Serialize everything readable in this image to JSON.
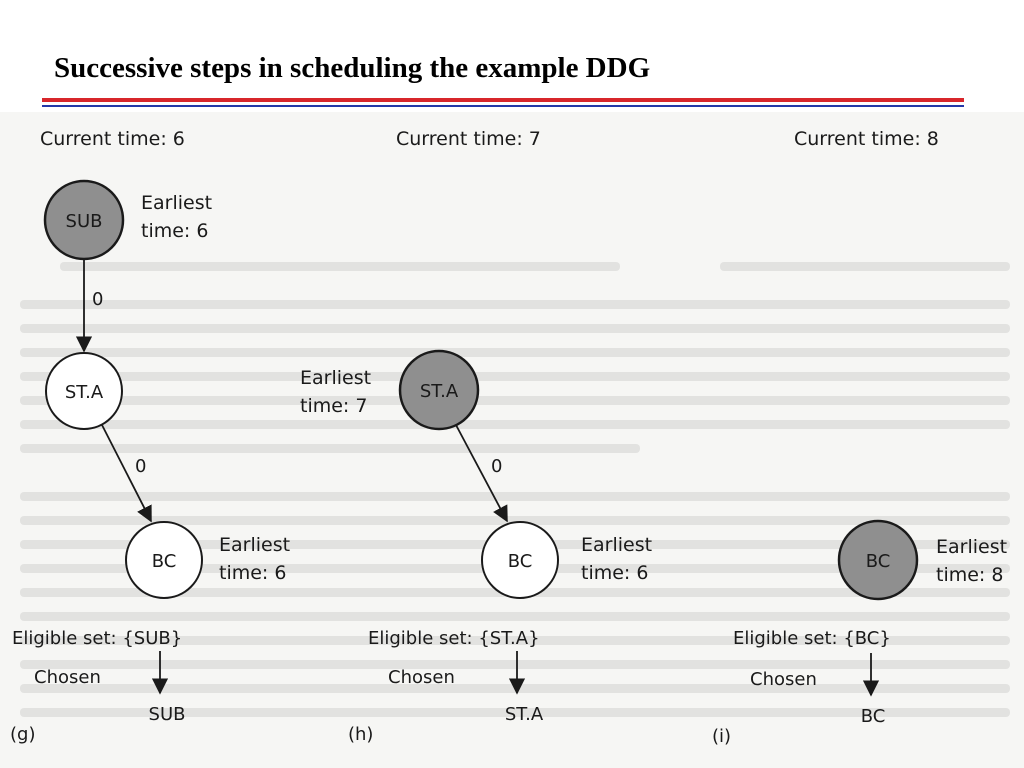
{
  "slide": {
    "title": "Successive steps in scheduling the example DDG"
  },
  "colors": {
    "title_rule_red": "#d8262b",
    "title_rule_blue": "#2438a8",
    "scheduled_node_fill": "#8f8f8f",
    "pending_node_fill": "#ffffff"
  },
  "panels": {
    "g": {
      "label": "(g)",
      "current_time": "Current time: 6",
      "nodes": {
        "sub": {
          "name": "SUB",
          "info_line1": "Earliest",
          "info_line2": "time: 6"
        },
        "sta": {
          "name": "ST.A"
        },
        "bc": {
          "name": "BC",
          "info_line1": "Earliest",
          "info_line2": "time: 6"
        }
      },
      "edges": {
        "sub_sta": "0",
        "sta_bc": "0"
      },
      "eligible_set": "Eligible set: {SUB}",
      "chosen_label": "Chosen",
      "chosen_value": "SUB"
    },
    "h": {
      "label": "(h)",
      "current_time": "Current time: 7",
      "nodes": {
        "sta": {
          "name": "ST.A",
          "info_line1": "Earliest",
          "info_line2": "time: 7"
        },
        "bc": {
          "name": "BC",
          "info_line1": "Earliest",
          "info_line2": "time: 6"
        }
      },
      "edges": {
        "sta_bc": "0"
      },
      "eligible_set": "Eligible set: {ST.A}",
      "chosen_label": "Chosen",
      "chosen_value": "ST.A"
    },
    "i": {
      "label": "(i)",
      "current_time": "Current time: 8",
      "nodes": {
        "bc": {
          "name": "BC",
          "info_line1": "Earliest",
          "info_line2": "time: 8"
        }
      },
      "eligible_set": "Eligible set: {BC}",
      "chosen_label": "Chosen",
      "chosen_value": "BC"
    }
  }
}
